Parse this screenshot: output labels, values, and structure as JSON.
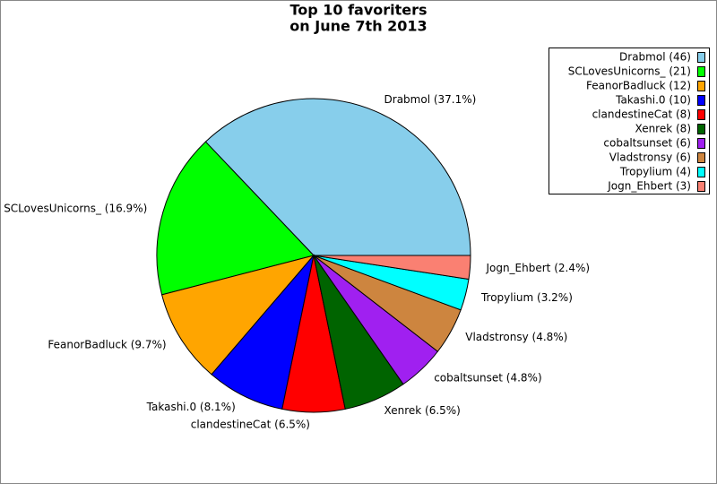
{
  "chart_data": {
    "type": "pie",
    "title": "Top 10 favoriters",
    "subtitle": "on June 7th 2013",
    "categories": [
      "Drabmol",
      "SCLovesUnicorns_",
      "FeanorBadluck",
      "Takashi.0",
      "clandestineCat",
      "Xenrek",
      "cobaltsunset",
      "Vladstronsy",
      "Tropylium",
      "Jogn_Ehbert"
    ],
    "values": [
      46,
      21,
      12,
      10,
      8,
      8,
      6,
      6,
      4,
      3
    ],
    "value_labels": [
      "Drabmol (46)",
      "SCLovesUnicorns_ (21)",
      "FeanorBadluck (12)",
      "Takashi.0 (10)",
      "clandestineCat (8)",
      "Xenrek (8)",
      "cobaltsunset (6)",
      "Vladstronsy (6)",
      "Tropylium (4)",
      "Jogn_Ehbert (3)"
    ],
    "slice_labels": [
      "Drabmol (37.1%)",
      "SCLovesUnicorns_ (16.9%)",
      "FeanorBadluck (9.7%)",
      "Takashi.0 (8.1%)",
      "clandestineCat (6.5%)",
      "Xenrek (6.5%)",
      "cobaltsunset (4.8%)",
      "Vladstronsy (4.8%)",
      "Tropylium (3.2%)",
      "Jogn_Ehbert (2.4%)"
    ],
    "colors": [
      "#87ceeb",
      "#00ff00",
      "#ffa500",
      "#0000ff",
      "#ff0000",
      "#006400",
      "#a020f0",
      "#cd853f",
      "#00ffff",
      "#fa8072"
    ],
    "legend": "upper right"
  }
}
